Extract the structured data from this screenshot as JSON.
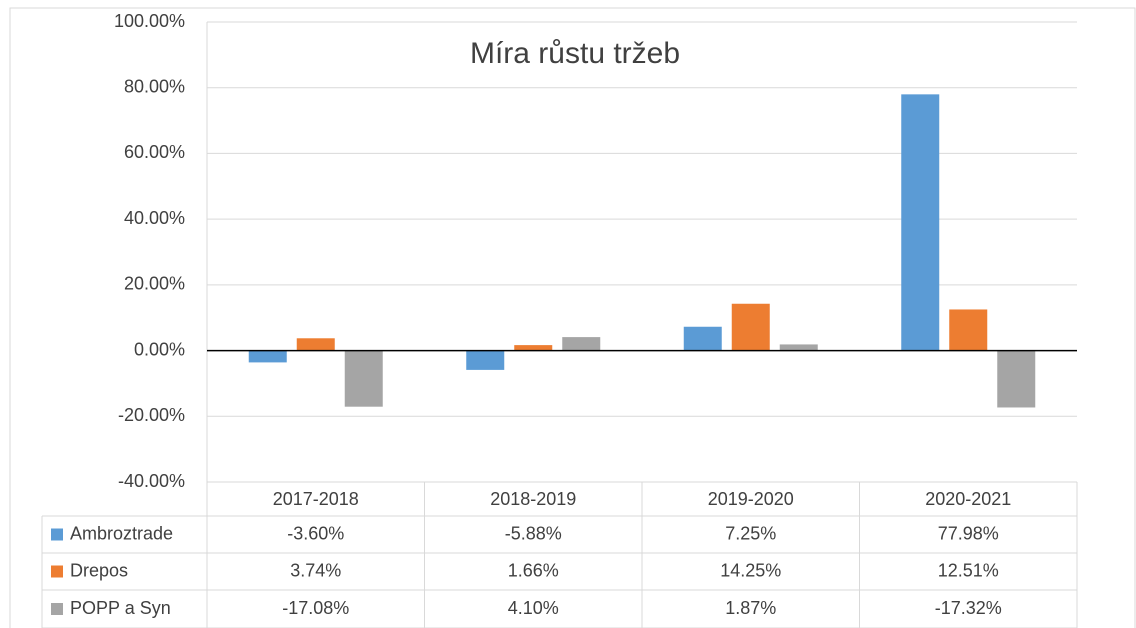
{
  "chart_data": {
    "type": "bar",
    "title": "Míra růstu tržeb",
    "categories": [
      "2017-2018",
      "2018-2019",
      "2019-2020",
      "2020-2021"
    ],
    "series": [
      {
        "name": "Ambroztrade",
        "color": "#5b9bd5",
        "values": [
          -3.6,
          -5.88,
          7.25,
          77.98
        ],
        "value_labels": [
          "-3.60%",
          "-5.88%",
          "7.25%",
          "77.98%"
        ]
      },
      {
        "name": "Drepos",
        "color": "#ed7d31",
        "values": [
          3.74,
          1.66,
          14.25,
          12.51
        ],
        "value_labels": [
          "3.74%",
          "1.66%",
          "14.25%",
          "12.51%"
        ]
      },
      {
        "name": "POPP a Syn",
        "color": "#a5a5a5",
        "values": [
          -17.08,
          4.1,
          1.87,
          -17.32
        ],
        "value_labels": [
          "-17.08%",
          "4.10%",
          "1.87%",
          "-17.32%"
        ]
      }
    ],
    "ylim": [
      -40,
      100
    ],
    "yticks": [
      {
        "value": -40,
        "label": "-40.00%"
      },
      {
        "value": -20,
        "label": "-20.00%"
      },
      {
        "value": 0,
        "label": "0.00%"
      },
      {
        "value": 20,
        "label": "20.00%"
      },
      {
        "value": 40,
        "label": "40.00%"
      },
      {
        "value": 60,
        "label": "60.00%"
      },
      {
        "value": 80,
        "label": "80.00%"
      },
      {
        "value": 100,
        "label": "100.00%"
      }
    ],
    "grid": true
  }
}
